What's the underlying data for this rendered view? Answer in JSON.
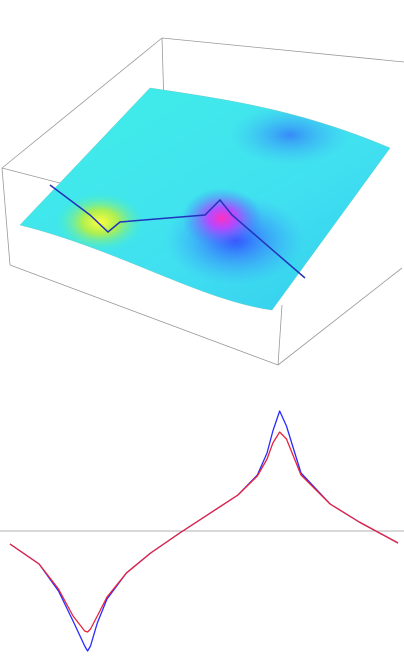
{
  "chart_data": {
    "type": "line",
    "x": [
      0,
      3,
      5,
      6.5,
      7.7,
      8,
      8.3,
      9,
      10,
      12,
      14.5,
      17.5,
      20.5,
      23.5,
      25.5,
      26.5,
      27.1,
      27.8,
      28.5,
      30,
      33,
      36,
      40
    ],
    "series": [
      {
        "color": "#2a2aff",
        "values": [
          -0.13,
          -0.33,
          -0.6,
          -0.9,
          -1.15,
          -1.2,
          -1.15,
          -0.92,
          -0.68,
          -0.42,
          -0.22,
          -0.02,
          0.17,
          0.36,
          0.56,
          0.78,
          1.0,
          1.2,
          1.05,
          0.58,
          0.27,
          0.09,
          -0.12
        ]
      },
      {
        "color": "#e8243c",
        "values": [
          -0.13,
          -0.33,
          -0.58,
          -0.85,
          -1.0,
          -1.01,
          -0.98,
          -0.85,
          -0.66,
          -0.42,
          -0.22,
          -0.02,
          0.17,
          0.36,
          0.55,
          0.72,
          0.88,
          0.99,
          0.92,
          0.56,
          0.27,
          0.09,
          -0.12
        ]
      }
    ],
    "xlim": [
      0,
      40
    ],
    "ylim": [
      -1.25,
      1.25
    ]
  }
}
